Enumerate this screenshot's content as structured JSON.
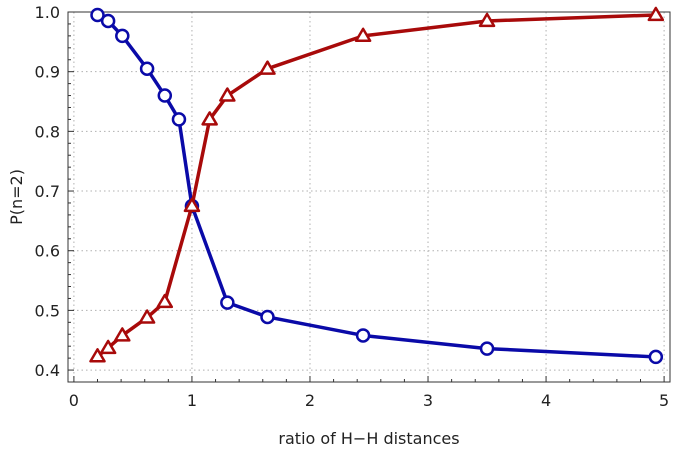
{
  "chart_data": {
    "type": "line",
    "title": "",
    "xlabel": "ratio of H−H distances",
    "ylabel": "P(n=2)",
    "xlim": [
      -0.05,
      5.05
    ],
    "ylim": [
      0.38,
      1.0
    ],
    "x_ticks": [
      0,
      1,
      2,
      3,
      4,
      5
    ],
    "x_tick_labels": [
      "0",
      "1",
      "2",
      "3",
      "4",
      "5"
    ],
    "y_ticks": [
      0.4,
      0.5,
      0.6,
      0.7,
      0.8,
      0.9,
      1.0
    ],
    "y_tick_labels": [
      "0.4",
      "0.5",
      "0.6",
      "0.7",
      "0.8",
      "0.9",
      "1.0"
    ],
    "grid": true,
    "legend": "none",
    "series": [
      {
        "color": "#0a0aa8",
        "marker": "circle",
        "x": [
          0.2,
          0.29,
          0.41,
          0.62,
          0.77,
          0.89,
          1.0,
          1.3,
          1.64,
          2.45,
          3.5,
          4.93
        ],
        "y": [
          0.995,
          0.985,
          0.96,
          0.905,
          0.86,
          0.82,
          0.675,
          0.513,
          0.489,
          0.458,
          0.436,
          0.422
        ]
      },
      {
        "color": "#a80a0a",
        "marker": "triangle",
        "x": [
          0.2,
          0.29,
          0.41,
          0.62,
          0.77,
          1.0,
          1.15,
          1.3,
          1.64,
          2.45,
          3.5,
          4.93
        ],
        "y": [
          0.423,
          0.437,
          0.458,
          0.488,
          0.514,
          0.675,
          0.82,
          0.86,
          0.905,
          0.96,
          0.985,
          0.995
        ]
      }
    ]
  }
}
